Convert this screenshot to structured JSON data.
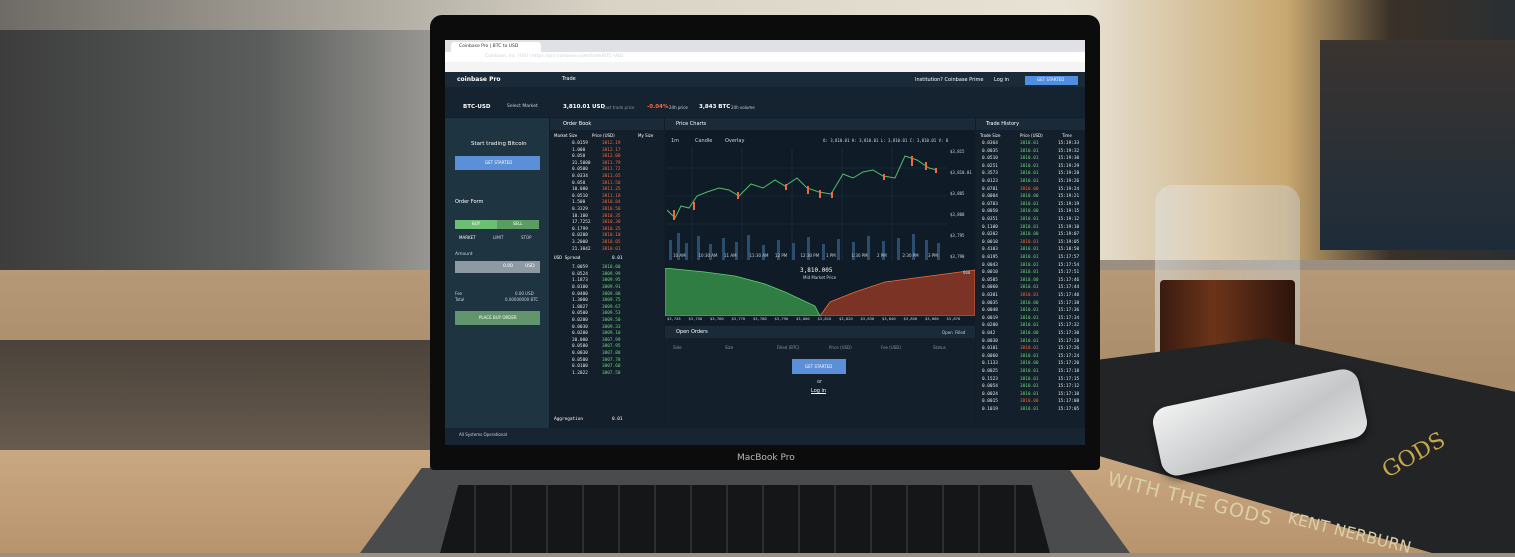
{
  "browser": {
    "tab": "Coinbase Pro | BTC to USD",
    "url": "Coinbase, Inc. [US] | https://pro.coinbase.com/trade/BTC-USD"
  },
  "app": {
    "logo": "coinbase Pro",
    "nav": "Trade",
    "institution": "Institution? Coinbase Prime",
    "login": "Log in",
    "cta": "GET STARTED"
  },
  "ticker": {
    "market": "BTC-USD",
    "select": "Select Market",
    "price": "3,810.01 USD",
    "price_label": "Last trade price",
    "change": "-0.04%",
    "change_label": "24h price",
    "volume": "3,843 BTC",
    "volume_label": "24h volume"
  },
  "sidebar": {
    "heading": "Start trading Bitcoin",
    "cta": "GET STARTED",
    "order_form": "Order Form",
    "buy": "BUY",
    "sell": "SELL",
    "tabs": [
      "MARKET",
      "LIMIT",
      "STOP"
    ],
    "amount": "Amount",
    "amount_value": "0.00",
    "unit": "USD",
    "fee": "Fee",
    "total": "Total",
    "fee_value": "0.00 USD",
    "total_value": "0.00000000 BTC",
    "place": "PLACE BUY ORDER"
  },
  "order_book": {
    "title": "Order Book",
    "headers": [
      "Market Size",
      "Price (USD)",
      "My Size"
    ],
    "asks": [
      [
        "0.0159",
        "3812.19"
      ],
      [
        "1.000",
        "3812.17"
      ],
      [
        "0.050",
        "3812.00"
      ],
      [
        "31.5000",
        "3811.79"
      ],
      [
        "0.0500",
        "3811.72"
      ],
      [
        "0.0334",
        "3811.65"
      ],
      [
        "0.050",
        "3811.50"
      ],
      [
        "10.000",
        "3811.25"
      ],
      [
        "0.0510",
        "3811.10"
      ],
      [
        "1.500",
        "3810.84"
      ],
      [
        "0.3329",
        "3810.50"
      ],
      [
        "10.100",
        "3810.35"
      ],
      [
        "17.7252",
        "3810.30"
      ],
      [
        "0.1799",
        "3810.25"
      ],
      [
        "0.0200",
        "3810.10"
      ],
      [
        "3.2000",
        "3810.05"
      ],
      [
        "21.3042",
        "3810.01"
      ]
    ],
    "spread_label": "USD Spread",
    "spread": "0.01",
    "bids": [
      [
        "7.0059",
        "3810.00"
      ],
      [
        "0.0524",
        "3809.99"
      ],
      [
        "1.1873",
        "3809.95"
      ],
      [
        "0.0100",
        "3809.91"
      ],
      [
        "0.0400",
        "3809.88"
      ],
      [
        "1.3000",
        "3809.75"
      ],
      [
        "1.0027",
        "3809.67"
      ],
      [
        "0.0500",
        "3809.53"
      ],
      [
        "0.0200",
        "3809.50"
      ],
      [
        "0.0030",
        "3809.33"
      ],
      [
        "0.0200",
        "3809.10"
      ],
      [
        "20.000",
        "3807.99"
      ],
      [
        "0.0580",
        "3807.95"
      ],
      [
        "0.0030",
        "3807.88"
      ],
      [
        "0.0500",
        "3807.78"
      ],
      [
        "0.0100",
        "3807.60"
      ],
      [
        "1.2022",
        "3807.50"
      ]
    ],
    "aggregation_label": "Aggregation",
    "aggregation": "0.01"
  },
  "price_chart": {
    "title": "Price Charts",
    "interval": "1m",
    "style": "Candle",
    "overlay": "Overlay",
    "ohlc": "O: 3,810.01  H: 3,810.01  L: 3,810.01  C: 3,810.01  V: 0",
    "yticks": [
      "$3,815",
      "$3,810.01",
      "$3,805",
      "$3,800",
      "$3,795",
      "$3,790"
    ],
    "xticks": [
      "10 AM",
      "10:30 AM",
      "11 AM",
      "11:30 AM",
      "12 PM",
      "12:30 PM",
      "1 PM",
      "1:30 PM",
      "2 PM",
      "2:30 PM",
      "3 PM"
    ],
    "mid_price": "3,810.005",
    "mid_label": "Mid Market Price",
    "depth_xticks": [
      "$3,745",
      "$3,750",
      "$3,760",
      "$3,770",
      "$3,780",
      "$3,790",
      "$3,800",
      "$3,810",
      "$3,820",
      "$3,830",
      "$3,840",
      "$3,850",
      "$3,860",
      "$3,870"
    ],
    "depth_ymax": "600"
  },
  "open_orders": {
    "title": "Open Orders",
    "filters": [
      "Open",
      "Filled"
    ],
    "headers": [
      "Side",
      "Size",
      "Filled (BTC)",
      "Price (USD)",
      "Fee (USD)",
      "Status"
    ],
    "cta": "GET STARTED",
    "or": "or",
    "login": "Log in"
  },
  "trade_history": {
    "title": "Trade History",
    "headers": [
      "Trade Size",
      "Price (USD)",
      "Time"
    ],
    "rows": [
      [
        "0.0364",
        "3810.01",
        "15:19:33"
      ],
      [
        "0.0035",
        "3810.01",
        "15:19:32"
      ],
      [
        "0.0510",
        "3810.01",
        "15:19:30"
      ],
      [
        "0.0251",
        "3810.01",
        "15:19:29"
      ],
      [
        "0.3573",
        "3810.01",
        "15:19:28"
      ],
      [
        "0.0123",
        "3810.01",
        "15:19:26"
      ],
      [
        "0.0701",
        "3810.00",
        "15:19:24"
      ],
      [
        "0.0004",
        "3810.00",
        "15:19:21"
      ],
      [
        "0.0703",
        "3810.01",
        "15:19:19"
      ],
      [
        "0.0050",
        "3810.00",
        "15:19:15"
      ],
      [
        "0.0351",
        "3810.01",
        "15:19:12"
      ],
      [
        "0.1100",
        "3810.01",
        "15:19:10"
      ],
      [
        "0.0202",
        "3810.00",
        "15:19:07"
      ],
      [
        "0.0010",
        "3810.01",
        "15:19:05"
      ],
      [
        "0.4103",
        "3810.01",
        "15:18:50"
      ],
      [
        "0.0195",
        "3810.01",
        "15:17:57"
      ],
      [
        "0.0043",
        "3810.01",
        "15:17:54"
      ],
      [
        "0.0010",
        "3810.01",
        "15:17:51"
      ],
      [
        "0.0505",
        "3810.00",
        "15:17:46"
      ],
      [
        "0.0060",
        "3810.01",
        "15:17:44"
      ],
      [
        "0.0301",
        "3810.01",
        "15:17:40"
      ],
      [
        "0.0035",
        "3810.00",
        "15:17:38"
      ],
      [
        "0.0048",
        "3810.01",
        "15:17:36"
      ],
      [
        "0.0019",
        "3810.01",
        "15:17:34"
      ],
      [
        "0.0200",
        "3810.01",
        "15:17:32"
      ],
      [
        "0.042",
        "3810.00",
        "15:17:30"
      ],
      [
        "0.0030",
        "3810.01",
        "15:17:28"
      ],
      [
        "0.0101",
        "3810.01",
        "15:17:26"
      ],
      [
        "0.0060",
        "3810.01",
        "15:17:24"
      ],
      [
        "0.1133",
        "3810.00",
        "15:17:20"
      ],
      [
        "0.0025",
        "3810.01",
        "15:17:18"
      ],
      [
        "0.1523",
        "3810.01",
        "15:17:15"
      ],
      [
        "0.0054",
        "3810.01",
        "15:17:12"
      ],
      [
        "0.0024",
        "3810.01",
        "15:17:10"
      ],
      [
        "0.0015",
        "3810.00",
        "15:17:08"
      ],
      [
        "0.1019",
        "3810.01",
        "15:17:05"
      ]
    ]
  },
  "status": "All Systems Operational",
  "laptop_brand": "MacBook Pro",
  "book": {
    "title": "WITH THE GODS",
    "author": "KENT NERBURN",
    "cover": "GODS"
  }
}
